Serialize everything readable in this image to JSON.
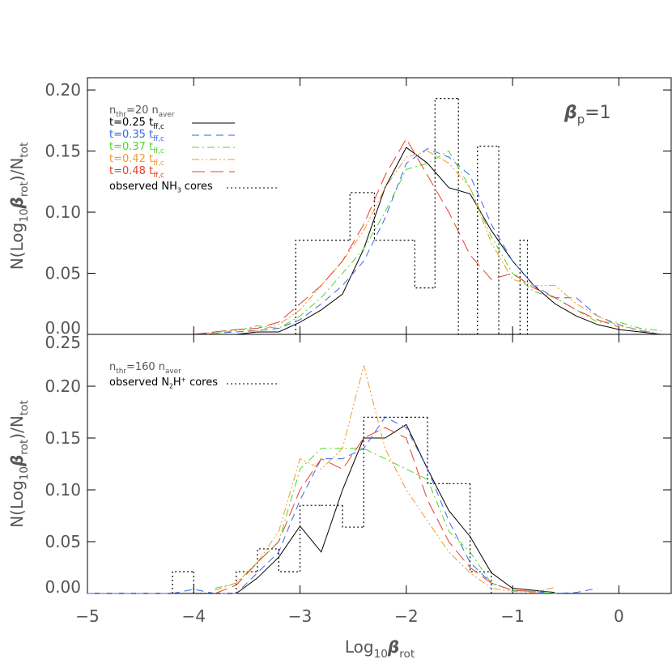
{
  "chart_data": [
    {
      "type": "line",
      "y_label": [
        {
          "text": "N(Log"
        },
        {
          "text": "10",
          "shift": "sub"
        },
        {
          "text": "β",
          "style": "italic"
        },
        {
          "text": "rot",
          "shift": "sub"
        },
        {
          "text": ")/N"
        },
        {
          "text": "tot",
          "shift": "sub"
        }
      ],
      "legend_title": [
        {
          "text": "n"
        },
        {
          "text": "thr",
          "shift": "sub"
        },
        {
          "text": "=20  n"
        },
        {
          "text": "aver",
          "shift": "sub"
        }
      ],
      "annotation": [
        {
          "text": "β",
          "style": "italic"
        },
        {
          "text": "p",
          "shift": "sub"
        },
        {
          "text": "=1"
        }
      ],
      "xlim": [
        -5,
        0.5
      ],
      "ylim": [
        0,
        0.21
      ],
      "xticks": [
        -5,
        -4,
        -3,
        -2,
        -1,
        0
      ],
      "yticks": [
        {
          "value": 0,
          "label": "0.00"
        },
        {
          "value": 0.05,
          "label": "0.05"
        },
        {
          "value": 0.1,
          "label": "0.10"
        },
        {
          "value": 0.15,
          "label": "0.15"
        },
        {
          "value": 0.2,
          "label": "0.20"
        }
      ],
      "x": [
        -4.4,
        -4.2,
        -4.0,
        -3.8,
        -3.6,
        -3.4,
        -3.2,
        -3.0,
        -2.8,
        -2.6,
        -2.4,
        -2.2,
        -2.0,
        -1.8,
        -1.6,
        -1.4,
        -1.2,
        -1.0,
        -0.8,
        -0.6,
        -0.4,
        -0.2,
        0,
        0.2,
        0.4
      ],
      "series": [
        {
          "name": [
            {
              "text": "t=0.25 t"
            },
            {
              "text": "ff,c",
              "shift": "sub"
            }
          ],
          "color": "#000000",
          "dash": "solid",
          "values": [
            null,
            null,
            null,
            null,
            0,
            0.002,
            0.002,
            0.01,
            0.02,
            0.033,
            0.07,
            0.12,
            0.153,
            0.14,
            0.12,
            0.115,
            0.085,
            0.06,
            0.04,
            0.025,
            0.015,
            0.008,
            0.004,
            0.002,
            0
          ]
        },
        {
          "name": [
            {
              "text": "t=0.35 t"
            },
            {
              "text": "ff,c",
              "shift": "sub"
            }
          ],
          "color": "#3a66e6",
          "dash": "dash",
          "values": [
            0,
            0,
            0,
            0.001,
            0.002,
            0.003,
            0.005,
            0.012,
            0.025,
            0.04,
            0.06,
            0.095,
            0.14,
            0.152,
            0.145,
            0.13,
            0.09,
            0.06,
            0.04,
            0.03,
            0.03,
            0.015,
            0.008,
            0.003,
            0
          ]
        },
        {
          "name": [
            {
              "text": "t=0.37 t"
            },
            {
              "text": "ff,c",
              "shift": "sub"
            }
          ],
          "color": "#4fd82c",
          "dash": "dashdot",
          "values": [
            null,
            null,
            0,
            0.001,
            0.003,
            0.007,
            0.005,
            0.015,
            0.03,
            0.05,
            0.07,
            0.1,
            0.135,
            0.14,
            0.15,
            0.12,
            0.08,
            0.05,
            0.035,
            0.03,
            0.02,
            0.01,
            0.01,
            0.005,
            0.003
          ]
        },
        {
          "name": [
            {
              "text": "t=0.42 t"
            },
            {
              "text": "ff,c",
              "shift": "sub"
            }
          ],
          "color": "#f29a2e",
          "dash": "dashdotdot",
          "values": [
            null,
            null,
            0,
            0.002,
            0.004,
            0.003,
            0.008,
            0.02,
            0.04,
            0.06,
            0.085,
            0.12,
            0.145,
            0.15,
            0.14,
            0.12,
            0.075,
            0.045,
            0.04,
            0.04,
            0.025,
            0.015,
            0.007,
            0.004,
            0
          ]
        },
        {
          "name": [
            {
              "text": "t=0.48 t"
            },
            {
              "text": "ff,c",
              "shift": "sub"
            }
          ],
          "color": "#e4412c",
          "dash": "longdash",
          "values": [
            null,
            null,
            0,
            0.002,
            0.004,
            0.005,
            0.01,
            0.025,
            0.04,
            0.06,
            0.09,
            0.13,
            0.16,
            0.13,
            0.1,
            0.065,
            0.045,
            0.05,
            0.038,
            0.03,
            0.02,
            0.012,
            0.006,
            null,
            null
          ]
        }
      ],
      "histogram": {
        "name": [
          {
            "text": "observed NH"
          },
          {
            "text": "3",
            "shift": "sub"
          },
          {
            "text": " cores"
          }
        ],
        "color": "#000000",
        "bins": [
          -3.04,
          -2.53,
          -2.3,
          -1.92,
          -1.73,
          -1.51,
          -1.33,
          -1.13,
          -0.93,
          -0.86
        ],
        "counts": [
          0.077,
          0.116,
          0.077,
          0.038,
          0.193,
          0,
          0.154,
          0,
          0.077
        ]
      }
    },
    {
      "type": "line",
      "y_label": [
        {
          "text": "N(Log"
        },
        {
          "text": "10",
          "shift": "sub"
        },
        {
          "text": "β",
          "style": "italic"
        },
        {
          "text": "rot",
          "shift": "sub"
        },
        {
          "text": ")/N"
        },
        {
          "text": "tot",
          "shift": "sub"
        }
      ],
      "x_label": [
        {
          "text": "Log"
        },
        {
          "text": "10",
          "shift": "sub"
        },
        {
          "text": "β",
          "style": "italic"
        },
        {
          "text": "rot",
          "shift": "sub"
        }
      ],
      "legend_title": [
        {
          "text": "n"
        },
        {
          "text": "thr",
          "shift": "sub"
        },
        {
          "text": "=160  n"
        },
        {
          "text": "aver",
          "shift": "sub"
        }
      ],
      "xlim": [
        -5,
        0.5
      ],
      "ylim": [
        0,
        0.25
      ],
      "xticks": [
        {
          "value": -5,
          "label": "−5"
        },
        {
          "value": -4,
          "label": "−4"
        },
        {
          "value": -3,
          "label": "−3"
        },
        {
          "value": -2,
          "label": "−2"
        },
        {
          "value": -1,
          "label": "−1"
        },
        0
      ],
      "yticks": [
        {
          "value": 0,
          "label": "0.00"
        },
        {
          "value": 0.05,
          "label": "0.05"
        },
        {
          "value": 0.1,
          "label": "0.10"
        },
        {
          "value": 0.15,
          "label": "0.15"
        },
        {
          "value": 0.2,
          "label": "0.20"
        },
        {
          "value": 0.25,
          "label": "0.25"
        }
      ],
      "x": [
        -5.0,
        -4.2,
        -4.0,
        -3.8,
        -3.6,
        -3.4,
        -3.2,
        -3.0,
        -2.8,
        -2.6,
        -2.4,
        -2.2,
        -2.0,
        -1.8,
        -1.6,
        -1.4,
        -1.2,
        -1.0,
        -0.8,
        -0.6,
        -0.4,
        -0.2
      ],
      "series": [
        {
          "color": "#000000",
          "dash": "solid",
          "values": [
            null,
            null,
            null,
            null,
            0,
            0.015,
            0.035,
            0.065,
            0.04,
            0.1,
            0.15,
            0.15,
            0.163,
            0.12,
            0.08,
            0.055,
            0.02,
            0.005,
            0.003,
            0.001,
            null,
            null
          ]
        },
        {
          "color": "#3a66e6",
          "dash": "dash",
          "values": [
            0,
            0,
            0.004,
            0,
            0,
            0.02,
            0.04,
            0.09,
            0.13,
            0.13,
            0.14,
            0.17,
            0.16,
            0.12,
            0.07,
            0.03,
            0.01,
            0.003,
            0.002,
            0,
            0.001,
            0.005
          ]
        },
        {
          "color": "#4fd82c",
          "dash": "dashdot",
          "values": [
            null,
            null,
            null,
            0.005,
            0.01,
            0.03,
            0.05,
            0.12,
            0.14,
            0.14,
            0.14,
            0.13,
            0.12,
            0.11,
            0.06,
            0.04,
            0.01,
            0.003,
            0.002,
            0.001,
            null,
            null
          ]
        },
        {
          "color": "#f29a2e",
          "dash": "dashdotdot",
          "values": [
            null,
            null,
            null,
            0.003,
            0.01,
            0.03,
            0.06,
            0.13,
            0.12,
            0.14,
            0.22,
            0.14,
            0.1,
            0.07,
            0.04,
            0.02,
            0.005,
            0.002,
            0.001,
            0.006,
            null,
            null
          ]
        },
        {
          "color": "#e4412c",
          "dash": "longdash",
          "values": [
            null,
            null,
            null,
            0,
            0.008,
            0.03,
            0.05,
            0.1,
            0.13,
            0.12,
            0.15,
            0.16,
            0.15,
            0.09,
            0.05,
            0.025,
            0.01,
            0.003,
            0.002,
            null,
            null,
            null
          ]
        }
      ],
      "histogram": {
        "name": [
          {
            "text": "observed N"
          },
          {
            "text": "2",
            "shift": "sub"
          },
          {
            "text": "H"
          },
          {
            "text": "+",
            "shift": "sup"
          },
          {
            "text": " cores"
          }
        ],
        "color": "#000000",
        "bins": [
          -4.2,
          -4.0,
          -3.8,
          -3.6,
          -3.4,
          -3.2,
          -3.0,
          -2.8,
          -2.6,
          -2.4,
          -2.2,
          -2.0,
          -1.8,
          -1.6,
          -1.4,
          -1.2
        ],
        "counts": [
          0.021,
          0,
          0,
          0.021,
          0.043,
          0.021,
          0.085,
          0.085,
          0.064,
          0.17,
          0.17,
          0.17,
          0.106,
          0.106,
          0.021
        ]
      }
    }
  ]
}
